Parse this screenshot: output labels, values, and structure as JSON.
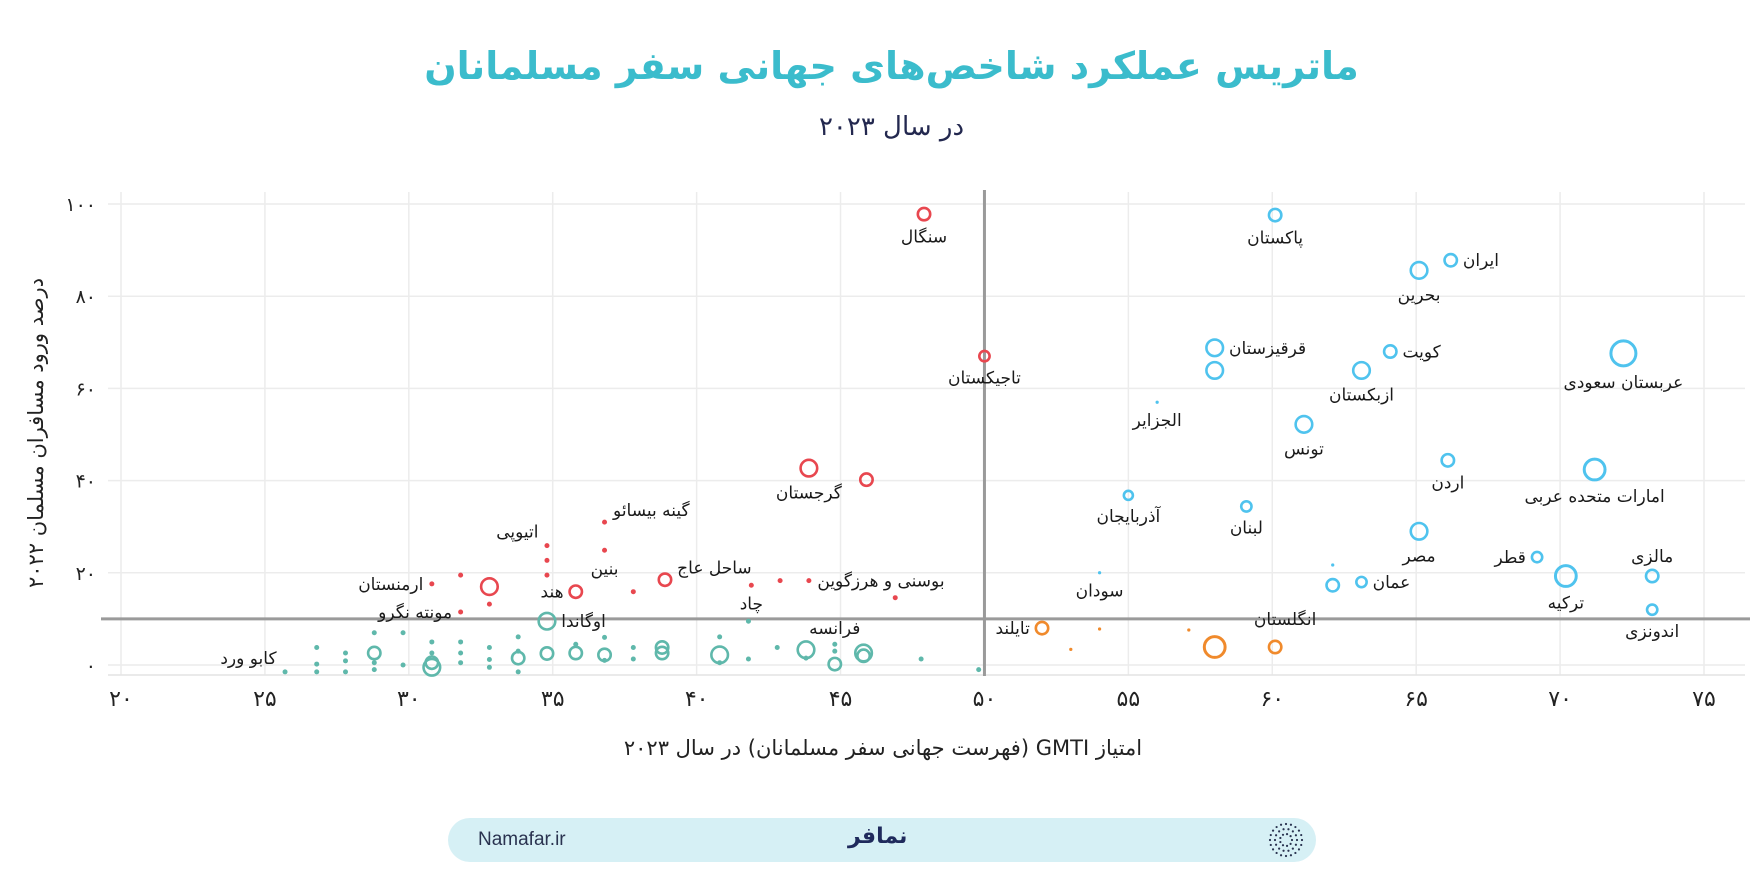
{
  "header": {
    "title": "ماتریس عملکرد شاخص‌های جهانی سفر مسلمانان",
    "subtitle": "در سال ۲۰۲۳"
  },
  "footer": {
    "site": "Namafar.ir",
    "logo_text": "نمافر",
    "emblem_icon": "dotted-circle-icon"
  },
  "colors": {
    "title": "#3bbccc",
    "red": "#e8474f",
    "blue": "#4fc3ee",
    "orange": "#f08a2c",
    "teal": "#5fb8ab"
  },
  "chart_data": {
    "type": "scatter",
    "title": "ماتریس عملکرد شاخص‌های جهانی سفر مسلمانان",
    "subtitle": "در سال ۲۰۲۳",
    "xlabel": "امتیاز GMTI (فهرست جهانی سفر مسلمانان) در سال ۲۰۲۳",
    "ylabel": "درصد ورود مسافران مسلمان ۲۰۲۲",
    "xlim": [
      20,
      75
    ],
    "ylim": [
      0,
      100
    ],
    "x_ticks": [
      20,
      25,
      30,
      35,
      40,
      45,
      50,
      55,
      60,
      65,
      70,
      75
    ],
    "x_tick_labels": [
      "۲۰",
      "۲۵",
      "۳۰",
      "۳۵",
      "۴۰",
      "۴۵",
      "۵۰",
      "۵۵",
      "۶۰",
      "۶۵",
      "۷۰",
      "۷۵"
    ],
    "y_ticks": [
      0,
      20,
      40,
      60,
      80,
      100
    ],
    "y_tick_labels": [
      "۰",
      "۲۰",
      "۴۰",
      "۶۰",
      "۸۰",
      "۱۰۰"
    ],
    "grid": true,
    "thresholds": {
      "x": 50,
      "y": 10
    },
    "size_note": "marker size relative level 1-5",
    "series": [
      {
        "name": "red",
        "color": "#e8474f",
        "points": [
          {
            "x": 47.9,
            "y": 97.8,
            "s": 2,
            "label": "سنگال",
            "pos": "below"
          },
          {
            "x": 50,
            "y": 67,
            "s": 1.5,
            "label": "تاجیکستان",
            "pos": "below"
          },
          {
            "x": 43.9,
            "y": 42.7,
            "s": 3,
            "label": "گرجستان",
            "pos": "below"
          },
          {
            "x": 45.9,
            "y": 40.2,
            "s": 2
          },
          {
            "x": 36.8,
            "y": 31,
            "s": 1,
            "label": "گینه بیسائو",
            "pos": "upright"
          },
          {
            "x": 34.8,
            "y": 25.9,
            "s": 1,
            "label": "اتیوپی",
            "pos": "upleft"
          },
          {
            "x": 34.8,
            "y": 22.7,
            "s": 1
          },
          {
            "x": 34.8,
            "y": 19.5,
            "s": 1
          },
          {
            "x": 36.8,
            "y": 24.9,
            "s": 1,
            "label": "بنین",
            "pos": "below"
          },
          {
            "x": 38.9,
            "y": 18.5,
            "s": 2,
            "label": "ساحل عاج",
            "pos": "upright"
          },
          {
            "x": 30.8,
            "y": 17.6,
            "s": 1,
            "label": "ارمنستان",
            "pos": "left"
          },
          {
            "x": 31.8,
            "y": 19.5,
            "s": 1
          },
          {
            "x": 32.8,
            "y": 17,
            "s": 3
          },
          {
            "x": 32.8,
            "y": 13.2,
            "s": 1
          },
          {
            "x": 31.8,
            "y": 11.5,
            "s": 1,
            "label": "مونته نگرو",
            "pos": "left"
          },
          {
            "x": 35.8,
            "y": 15.9,
            "s": 2,
            "label": "هند",
            "pos": "left"
          },
          {
            "x": 37.8,
            "y": 15.9,
            "s": 1
          },
          {
            "x": 41.9,
            "y": 17.3,
            "s": 1,
            "label": "چاد",
            "pos": "below"
          },
          {
            "x": 42.9,
            "y": 18.3,
            "s": 1
          },
          {
            "x": 43.9,
            "y": 18.3,
            "s": 1,
            "label": "بوسنی و هرزگوین",
            "pos": "right"
          },
          {
            "x": 46.9,
            "y": 14.6,
            "s": 1
          }
        ]
      },
      {
        "name": "blue",
        "color": "#4fc3ee",
        "points": [
          {
            "x": 60.1,
            "y": 97.6,
            "s": 2,
            "label": "پاکستان",
            "pos": "below"
          },
          {
            "x": 66.2,
            "y": 87.8,
            "s": 2,
            "label": "ایران",
            "pos": "right"
          },
          {
            "x": 65.1,
            "y": 85.6,
            "s": 3,
            "label": "بحرین",
            "pos": "below"
          },
          {
            "x": 58,
            "y": 68.8,
            "s": 3,
            "label": "قرقیزستان",
            "pos": "right"
          },
          {
            "x": 58,
            "y": 63.9,
            "s": 3
          },
          {
            "x": 64.1,
            "y": 68,
            "s": 2,
            "label": "کویت",
            "pos": "right"
          },
          {
            "x": 63.1,
            "y": 63.9,
            "s": 3,
            "label": "ازبکستان",
            "pos": "below"
          },
          {
            "x": 72.2,
            "y": 67.6,
            "s": 5,
            "label": "عربستان سعودی",
            "pos": "below"
          },
          {
            "x": 56,
            "y": 57,
            "s": 0.6,
            "label": "الجزایر",
            "pos": "below"
          },
          {
            "x": 61.1,
            "y": 52.2,
            "s": 3,
            "label": "تونس",
            "pos": "below"
          },
          {
            "x": 66.1,
            "y": 44.4,
            "s": 2,
            "label": "اردن",
            "pos": "below"
          },
          {
            "x": 71.2,
            "y": 42.4,
            "s": 4,
            "label": "امارات متحده عربی",
            "pos": "below"
          },
          {
            "x": 55,
            "y": 36.8,
            "s": 1.2,
            "label": "آذربایجان",
            "pos": "below"
          },
          {
            "x": 59.1,
            "y": 34.4,
            "s": 1.5,
            "label": "لبنان",
            "pos": "below"
          },
          {
            "x": 65.1,
            "y": 29,
            "s": 3,
            "label": "مصر",
            "pos": "below"
          },
          {
            "x": 69.2,
            "y": 23.4,
            "s": 1.5,
            "label": "قطر",
            "pos": "left"
          },
          {
            "x": 73.2,
            "y": 19.3,
            "s": 2,
            "label": "مالزی",
            "pos": "above"
          },
          {
            "x": 70.2,
            "y": 19.3,
            "s": 4,
            "label": "ترکیه",
            "pos": "below"
          },
          {
            "x": 63.1,
            "y": 18,
            "s": 1.5,
            "label": "عمان",
            "pos": "right"
          },
          {
            "x": 62.1,
            "y": 17.3,
            "s": 2
          },
          {
            "x": 62.1,
            "y": 21.7,
            "s": 0.6
          },
          {
            "x": 54,
            "y": 20,
            "s": 0.6,
            "label": "سودان",
            "pos": "below"
          },
          {
            "x": 73.2,
            "y": 12,
            "s": 1.5,
            "label": "اندونزی",
            "pos": "below"
          }
        ]
      },
      {
        "name": "orange",
        "color": "#f08a2c",
        "points": [
          {
            "x": 52,
            "y": 8,
            "s": 2,
            "label": "تایلند",
            "pos": "left"
          },
          {
            "x": 53,
            "y": 3.4,
            "s": 0.6
          },
          {
            "x": 54,
            "y": 7.8,
            "s": 0.6
          },
          {
            "x": 57.1,
            "y": 7.6,
            "s": 0.6
          },
          {
            "x": 58,
            "y": 3.9,
            "s": 4
          },
          {
            "x": 60.1,
            "y": 3.9,
            "s": 2,
            "label": "انگلستان",
            "pos": "aboveright"
          }
        ]
      },
      {
        "name": "teal",
        "color": "#5fb8ab",
        "points": [
          {
            "x": 25.7,
            "y": -1.5,
            "s": 1,
            "label": "کابو ورد",
            "pos": "upleft"
          },
          {
            "x": 26.8,
            "y": 3.8,
            "s": 1
          },
          {
            "x": 26.8,
            "y": 0.2,
            "s": 1
          },
          {
            "x": 26.8,
            "y": -1.5,
            "s": 1
          },
          {
            "x": 27.8,
            "y": 2.6,
            "s": 1
          },
          {
            "x": 27.8,
            "y": 0.9,
            "s": 1
          },
          {
            "x": 27.8,
            "y": -1.5,
            "s": 1
          },
          {
            "x": 28.8,
            "y": 7,
            "s": 1
          },
          {
            "x": 28.8,
            "y": 2.6,
            "s": 2
          },
          {
            "x": 28.8,
            "y": 0.5,
            "s": 1
          },
          {
            "x": 28.8,
            "y": -1,
            "s": 1
          },
          {
            "x": 29.8,
            "y": 7,
            "s": 1
          },
          {
            "x": 29.8,
            "y": 0,
            "s": 1
          },
          {
            "x": 30.8,
            "y": 5,
            "s": 1
          },
          {
            "x": 30.8,
            "y": 2.6,
            "s": 1
          },
          {
            "x": 30.8,
            "y": 0.5,
            "s": 2
          },
          {
            "x": 30.8,
            "y": -0.5,
            "s": 3
          },
          {
            "x": 31.8,
            "y": 5,
            "s": 1
          },
          {
            "x": 31.8,
            "y": 2.6,
            "s": 1
          },
          {
            "x": 31.8,
            "y": 0.5,
            "s": 1
          },
          {
            "x": 32.8,
            "y": 3.8,
            "s": 1
          },
          {
            "x": 32.8,
            "y": 1.2,
            "s": 1
          },
          {
            "x": 32.8,
            "y": -0.5,
            "s": 1
          },
          {
            "x": 33.8,
            "y": 6.1,
            "s": 1
          },
          {
            "x": 33.8,
            "y": 3,
            "s": 1
          },
          {
            "x": 33.8,
            "y": 1.5,
            "s": 2
          },
          {
            "x": 33.8,
            "y": -1.5,
            "s": 1
          },
          {
            "x": 34.8,
            "y": 9.5,
            "s": 3,
            "label": "اوگاندا",
            "pos": "right"
          },
          {
            "x": 34.8,
            "y": 2.5,
            "s": 2
          },
          {
            "x": 35.8,
            "y": 4.5,
            "s": 1
          },
          {
            "x": 35.8,
            "y": 2.6,
            "s": 2
          },
          {
            "x": 36.8,
            "y": 6,
            "s": 1
          },
          {
            "x": 36.8,
            "y": 2.2,
            "s": 2
          },
          {
            "x": 36.8,
            "y": 1,
            "s": 1
          },
          {
            "x": 37.8,
            "y": 3.8,
            "s": 1
          },
          {
            "x": 37.8,
            "y": 1.3,
            "s": 1
          },
          {
            "x": 38.8,
            "y": 3.8,
            "s": 2
          },
          {
            "x": 38.8,
            "y": 2.6,
            "s": 2
          },
          {
            "x": 40.8,
            "y": 6.1,
            "s": 1
          },
          {
            "x": 40.8,
            "y": 2.2,
            "s": 3
          },
          {
            "x": 40.8,
            "y": 0.5,
            "s": 1
          },
          {
            "x": 41.8,
            "y": 9.5,
            "s": 1
          },
          {
            "x": 41.8,
            "y": 1.3,
            "s": 1
          },
          {
            "x": 42.8,
            "y": 3.8,
            "s": 1
          },
          {
            "x": 43.8,
            "y": 3.3,
            "s": 3
          },
          {
            "x": 43.8,
            "y": 1.5,
            "s": 1
          },
          {
            "x": 44.8,
            "y": 4.5,
            "s": 1,
            "label": "فرانسه",
            "pos": "above"
          },
          {
            "x": 44.8,
            "y": 3,
            "s": 1
          },
          {
            "x": 44.8,
            "y": 0.2,
            "s": 2
          },
          {
            "x": 45.8,
            "y": 2.6,
            "s": 3
          },
          {
            "x": 45.8,
            "y": 2.0,
            "s": 2
          },
          {
            "x": 47.8,
            "y": 1.3,
            "s": 1
          },
          {
            "x": 49.8,
            "y": -1,
            "s": 1
          }
        ]
      }
    ]
  }
}
